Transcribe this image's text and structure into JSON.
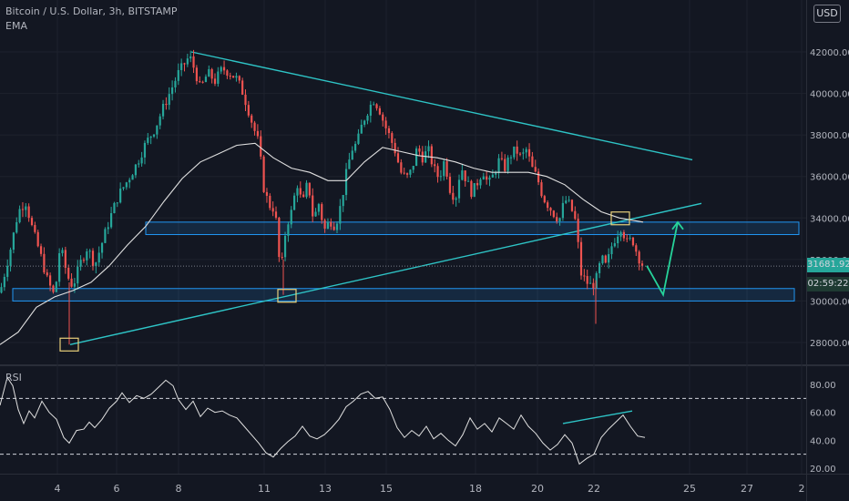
{
  "header": {
    "title": "Bitcoin / U.S. Dollar, 3h, BITSTAMP",
    "indicator": "EMA",
    "currency_button": "USD"
  },
  "price_scale": {
    "last_price": "31681.92",
    "countdown": "02:59:22",
    "last_price_color": "#26a69a"
  },
  "colors": {
    "background": "#131722",
    "up_candle": "#26a69a",
    "down_candle": "#ef5350",
    "ema_line": "#e0e0e0",
    "trendline": "#2ec4c6",
    "zone_border": "#2196f3",
    "zone_fill": "rgba(33,150,243,0.15)",
    "marker_box": "#e8d07a",
    "arrow": "#26d39a",
    "rsi_line": "#e0e0e0"
  },
  "chart_data": [
    {
      "type": "candlestick",
      "title": "Bitcoin / U.S. Dollar, 3h, BITSTAMP",
      "x_ticks": [
        "4",
        "6",
        "8",
        "11",
        "13",
        "15",
        "18",
        "20",
        "22",
        "25",
        "27",
        "2"
      ],
      "y_ticks": [
        "28000.00",
        "30000.00",
        "32000.00",
        "34000.00",
        "36000.00",
        "38000.00",
        "40000.00",
        "42000.00"
      ],
      "ylim": [
        26800,
        43000
      ],
      "price_path": [
        [
          0,
          30400
        ],
        [
          6,
          31500
        ],
        [
          12,
          32600
        ],
        [
          20,
          34300
        ],
        [
          28,
          34800
        ],
        [
          36,
          33400
        ],
        [
          44,
          32300
        ],
        [
          52,
          31000
        ],
        [
          60,
          30200
        ],
        [
          66,
          32700
        ],
        [
          74,
          31200
        ],
        [
          80,
          30700
        ],
        [
          88,
          31800
        ],
        [
          96,
          32600
        ],
        [
          104,
          31700
        ],
        [
          112,
          32800
        ],
        [
          120,
          33900
        ],
        [
          130,
          35100
        ],
        [
          140,
          35800
        ],
        [
          150,
          36600
        ],
        [
          160,
          37600
        ],
        [
          170,
          38300
        ],
        [
          180,
          39400
        ],
        [
          188,
          40200
        ],
        [
          196,
          41000
        ],
        [
          202,
          41400
        ],
        [
          208,
          41800
        ],
        [
          214,
          41100
        ],
        [
          220,
          40200
        ],
        [
          228,
          41000
        ],
        [
          236,
          40600
        ],
        [
          244,
          41200
        ],
        [
          252,
          41000
        ],
        [
          260,
          40700
        ],
        [
          266,
          40100
        ],
        [
          272,
          39300
        ],
        [
          278,
          38400
        ],
        [
          284,
          37600
        ],
        [
          290,
          35300
        ],
        [
          296,
          34600
        ],
        [
          302,
          34400
        ],
        [
          308,
          31200
        ],
        [
          314,
          33600
        ],
        [
          320,
          34300
        ],
        [
          326,
          35700
        ],
        [
          332,
          34600
        ],
        [
          338,
          35800
        ],
        [
          344,
          33900
        ],
        [
          350,
          34700
        ],
        [
          356,
          33400
        ],
        [
          362,
          33900
        ],
        [
          368,
          33600
        ],
        [
          374,
          34600
        ],
        [
          380,
          36100
        ],
        [
          386,
          37300
        ],
        [
          392,
          37600
        ],
        [
          398,
          38600
        ],
        [
          404,
          39200
        ],
        [
          410,
          39700
        ],
        [
          416,
          39300
        ],
        [
          422,
          38500
        ],
        [
          428,
          37900
        ],
        [
          434,
          37200
        ],
        [
          440,
          36200
        ],
        [
          446,
          35900
        ],
        [
          452,
          36300
        ],
        [
          458,
          37400
        ],
        [
          464,
          36900
        ],
        [
          470,
          37300
        ],
        [
          476,
          36400
        ],
        [
          482,
          35900
        ],
        [
          488,
          36800
        ],
        [
          494,
          35400
        ],
        [
          500,
          34900
        ],
        [
          506,
          36500
        ],
        [
          512,
          35800
        ],
        [
          518,
          35200
        ],
        [
          524,
          35700
        ],
        [
          530,
          36300
        ],
        [
          536,
          35600
        ],
        [
          542,
          36100
        ],
        [
          548,
          36800
        ],
        [
          554,
          36400
        ],
        [
          560,
          37000
        ],
        [
          566,
          37300
        ],
        [
          572,
          36900
        ],
        [
          578,
          37300
        ],
        [
          584,
          36400
        ],
        [
          590,
          35900
        ],
        [
          596,
          35000
        ],
        [
          602,
          34600
        ],
        [
          608,
          34200
        ],
        [
          614,
          33900
        ],
        [
          620,
          34900
        ],
        [
          626,
          34600
        ],
        [
          632,
          33800
        ],
        [
          638,
          31300
        ],
        [
          644,
          30900
        ],
        [
          650,
          30700
        ],
        [
          656,
          31200
        ],
        [
          660,
          32100
        ],
        [
          666,
          31600
        ],
        [
          670,
          32500
        ],
        [
          676,
          33100
        ],
        [
          682,
          33600
        ],
        [
          688,
          32800
        ],
        [
          694,
          33000
        ],
        [
          700,
          32200
        ],
        [
          706,
          31680
        ]
      ],
      "ema_path": [
        [
          0,
          27900
        ],
        [
          20,
          28500
        ],
        [
          40,
          29700
        ],
        [
          60,
          30200
        ],
        [
          80,
          30500
        ],
        [
          100,
          30900
        ],
        [
          120,
          31700
        ],
        [
          140,
          32700
        ],
        [
          160,
          33600
        ],
        [
          180,
          34800
        ],
        [
          200,
          35900
        ],
        [
          220,
          36700
        ],
        [
          240,
          37100
        ],
        [
          260,
          37500
        ],
        [
          280,
          37600
        ],
        [
          300,
          36900
        ],
        [
          320,
          36400
        ],
        [
          340,
          36200
        ],
        [
          360,
          35800
        ],
        [
          380,
          35800
        ],
        [
          400,
          36700
        ],
        [
          420,
          37400
        ],
        [
          440,
          37200
        ],
        [
          460,
          37000
        ],
        [
          480,
          36900
        ],
        [
          500,
          36700
        ],
        [
          520,
          36400
        ],
        [
          540,
          36200
        ],
        [
          560,
          36200
        ],
        [
          580,
          36200
        ],
        [
          600,
          36000
        ],
        [
          620,
          35600
        ],
        [
          640,
          34900
        ],
        [
          660,
          34300
        ],
        [
          680,
          34000
        ],
        [
          706,
          33800
        ]
      ],
      "support_zones": [
        {
          "y1": 33200,
          "y2": 33800
        },
        {
          "y1": 30000,
          "y2": 30600
        }
      ],
      "trendlines": [
        {
          "from": [
            210,
            42000
          ],
          "to": [
            760,
            36800
          ]
        },
        {
          "from": [
            77,
            27900
          ],
          "to": [
            770,
            34700
          ]
        }
      ],
      "projection_arrow": [
        [
          710,
          31700
        ],
        [
          728,
          30300
        ],
        [
          744,
          33800
        ]
      ]
    },
    {
      "type": "line",
      "title": "RSI",
      "y_ticks": [
        "20.00",
        "40.00",
        "60.00",
        "80.00"
      ],
      "ylim": [
        15,
        100
      ],
      "bands": [
        70,
        30
      ],
      "rsi_path": [
        [
          0,
          65
        ],
        [
          8,
          85
        ],
        [
          14,
          79
        ],
        [
          20,
          62
        ],
        [
          26,
          52
        ],
        [
          32,
          61
        ],
        [
          38,
          56
        ],
        [
          46,
          68
        ],
        [
          54,
          60
        ],
        [
          62,
          55
        ],
        [
          70,
          42
        ],
        [
          76,
          38
        ],
        [
          84,
          47
        ],
        [
          92,
          48
        ],
        [
          98,
          53
        ],
        [
          104,
          49
        ],
        [
          112,
          55
        ],
        [
          120,
          63
        ],
        [
          128,
          68
        ],
        [
          134,
          74
        ],
        [
          142,
          67
        ],
        [
          150,
          72
        ],
        [
          158,
          70
        ],
        [
          166,
          73
        ],
        [
          174,
          78
        ],
        [
          182,
          83
        ],
        [
          190,
          79
        ],
        [
          196,
          69
        ],
        [
          204,
          62
        ],
        [
          212,
          68
        ],
        [
          220,
          57
        ],
        [
          228,
          63
        ],
        [
          236,
          60
        ],
        [
          244,
          61
        ],
        [
          252,
          58
        ],
        [
          260,
          56
        ],
        [
          268,
          50
        ],
        [
          276,
          44
        ],
        [
          284,
          38
        ],
        [
          292,
          31
        ],
        [
          300,
          28
        ],
        [
          308,
          34
        ],
        [
          316,
          39
        ],
        [
          324,
          43
        ],
        [
          332,
          50
        ],
        [
          340,
          43
        ],
        [
          348,
          41
        ],
        [
          356,
          44
        ],
        [
          364,
          49
        ],
        [
          372,
          55
        ],
        [
          380,
          64
        ],
        [
          388,
          68
        ],
        [
          396,
          73
        ],
        [
          404,
          75
        ],
        [
          412,
          70
        ],
        [
          420,
          71
        ],
        [
          428,
          62
        ],
        [
          436,
          49
        ],
        [
          444,
          42
        ],
        [
          452,
          47
        ],
        [
          460,
          43
        ],
        [
          468,
          50
        ],
        [
          476,
          41
        ],
        [
          484,
          45
        ],
        [
          492,
          40
        ],
        [
          500,
          36
        ],
        [
          508,
          44
        ],
        [
          516,
          56
        ],
        [
          524,
          48
        ],
        [
          532,
          52
        ],
        [
          540,
          46
        ],
        [
          548,
          56
        ],
        [
          556,
          52
        ],
        [
          564,
          48
        ],
        [
          572,
          58
        ],
        [
          580,
          50
        ],
        [
          588,
          45
        ],
        [
          596,
          38
        ],
        [
          604,
          33
        ],
        [
          612,
          37
        ],
        [
          620,
          44
        ],
        [
          628,
          38
        ],
        [
          636,
          23
        ],
        [
          644,
          27
        ],
        [
          652,
          30
        ],
        [
          660,
          42
        ],
        [
          668,
          48
        ],
        [
          676,
          53
        ],
        [
          684,
          58
        ],
        [
          692,
          50
        ],
        [
          700,
          43
        ],
        [
          708,
          42
        ]
      ],
      "divergence_line": [
        [
          618,
          52
        ],
        [
          694,
          61
        ]
      ]
    }
  ]
}
